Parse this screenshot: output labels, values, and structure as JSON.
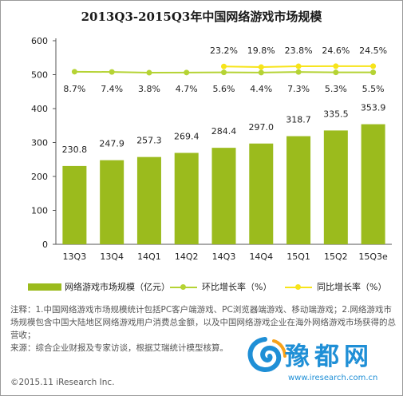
{
  "chart_data": {
    "type": "bar",
    "title": "2013Q3-2015Q3年中国网络游戏市场规模",
    "categories": [
      "13Q3",
      "13Q4",
      "14Q1",
      "14Q2",
      "14Q3",
      "14Q4",
      "15Q1",
      "15Q2",
      "15Q3e"
    ],
    "yticks": [
      "0",
      "100",
      "200",
      "300",
      "400",
      "500",
      "600"
    ],
    "ylim": [
      0,
      600
    ],
    "grid": false,
    "series": [
      {
        "name": "网络游戏市场规模（亿元）",
        "type": "bar",
        "color": "#9bbb1d",
        "values": [
          230.8,
          247.9,
          257.3,
          269.4,
          284.4,
          297.0,
          318.7,
          335.5,
          353.9
        ],
        "labels": [
          "230.8",
          "247.9",
          "257.3",
          "269.4",
          "284.4",
          "297.0",
          "318.7",
          "335.5",
          "353.9"
        ]
      },
      {
        "name": "环比增长率（%）",
        "type": "line",
        "color": "#b5d334",
        "values": [
          8.7,
          7.4,
          3.8,
          4.7,
          5.6,
          4.4,
          7.3,
          5.3,
          5.5
        ],
        "labels": [
          "8.7%",
          "7.4%",
          "3.8%",
          "4.7%",
          "5.6%",
          "4.4%",
          "7.3%",
          "5.3%",
          "5.5%"
        ]
      },
      {
        "name": "同比增长率（%）",
        "type": "line",
        "color": "#f7e41a",
        "values": [
          null,
          null,
          null,
          null,
          23.2,
          19.8,
          23.8,
          24.6,
          24.5
        ],
        "labels": [
          null,
          null,
          null,
          null,
          "23.2%",
          "19.8%",
          "23.8%",
          "24.6%",
          "24.5%"
        ]
      }
    ]
  },
  "legend": {
    "bar_label": "网络游戏市场规模（亿元）",
    "hb_label": "环比增长率（%）",
    "tb_label": "同比增长率（%）"
  },
  "note": {
    "line1": "注释：1.中国网络游戏市场规模统计包括PC客户端游戏、PC浏览器端游戏、移动端游戏；2.网络游戏市场规模包含中国大陆地区网络游戏用户消费总金额，以及中国网络游戏企业在海外网络游戏市场获得的总营收；",
    "line2": "来源：综合企业财报及专家访谈，根据艾瑞统计模型核算。"
  },
  "copyright": "©2015.11 iResearch Inc.",
  "watermark": {
    "text": "豫都网",
    "url": "www.iresearch.com.cn"
  },
  "colors": {
    "bar": "#9bbb1d",
    "hb_line": "#b5d334",
    "tb_line": "#f7e41a",
    "watermark": "#1f8fd6"
  }
}
